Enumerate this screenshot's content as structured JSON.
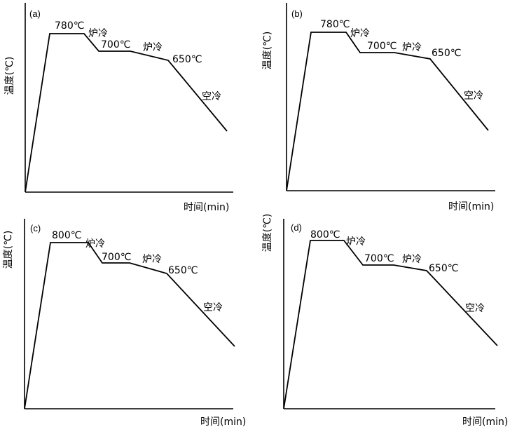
{
  "panels": [
    {
      "id": "a",
      "tag": "(a)",
      "ylabel": "温度(℃)",
      "xlabel": "时间(min)",
      "annotations": {
        "peak": "780℃",
        "cool1": "炉冷",
        "plateau": "700℃",
        "cool2": "炉冷",
        "end": "650℃",
        "cool3": "空冷"
      }
    },
    {
      "id": "b",
      "tag": "(b)",
      "ylabel": "温度(℃)",
      "xlabel": "时间(min)",
      "annotations": {
        "peak": "780℃",
        "cool1": "炉冷",
        "plateau": "700℃",
        "cool2": "炉冷",
        "end": "650℃",
        "cool3": "空冷"
      }
    },
    {
      "id": "c",
      "tag": "(c)",
      "ylabel": "温度(℃)",
      "xlabel": "时间(min)",
      "annotations": {
        "peak": "800℃",
        "cool1": "炉冷",
        "plateau": "700℃",
        "cool2": "炉冷",
        "end": "650℃",
        "cool3": "空冷"
      }
    },
    {
      "id": "d",
      "tag": "(d)",
      "ylabel": "温度(℃)",
      "xlabel": "时间(min)",
      "annotations": {
        "peak": "800℃",
        "cool1": "炉冷",
        "plateau": "700℃",
        "cool2": "炉冷",
        "end": "650℃",
        "cool3": "空冷"
      }
    }
  ]
}
